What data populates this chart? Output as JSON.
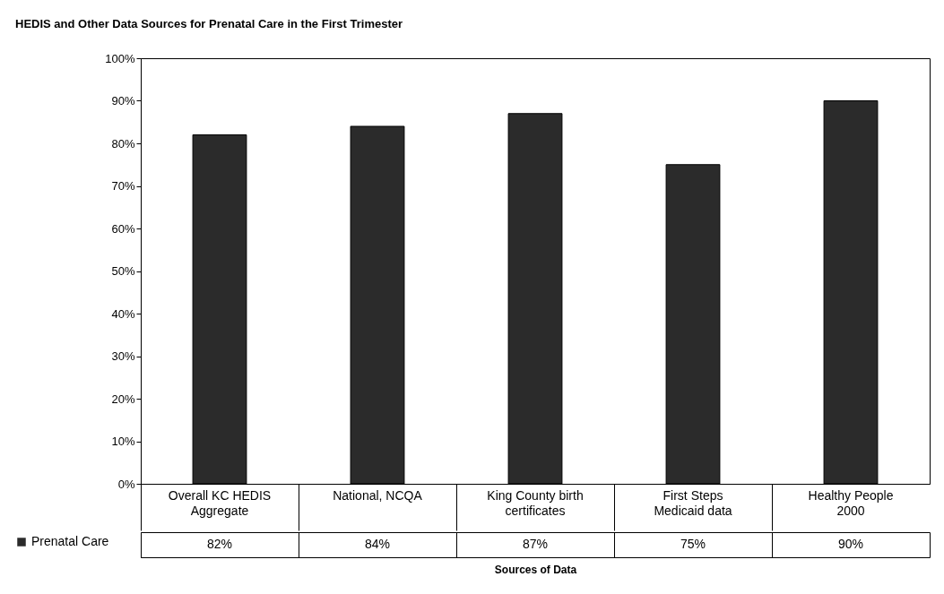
{
  "chart_data": {
    "type": "bar",
    "title": "HEDIS and Other Data Sources for Prenatal Care in the First Trimester",
    "xlabel": "Sources of Data",
    "categories": [
      "Overall KC HEDIS Aggregate",
      "National, NCQA",
      "King County birth certificates",
      "First Steps Medicaid data",
      "Healthy People 2000"
    ],
    "series": [
      {
        "name": "Prenatal Care",
        "color": "#2b2b2b",
        "values": [
          82,
          84,
          87,
          75,
          90
        ],
        "value_labels": [
          "82%",
          "84%",
          "87%",
          "75%",
          "90%"
        ]
      }
    ],
    "ylim": [
      0,
      100
    ],
    "yticks": [
      {
        "value": 0,
        "label": "0%"
      },
      {
        "value": 10,
        "label": "10%"
      },
      {
        "value": 20,
        "label": "20%"
      },
      {
        "value": 30,
        "label": "30%"
      },
      {
        "value": 40,
        "label": "40%"
      },
      {
        "value": 50,
        "label": "50%"
      },
      {
        "value": 60,
        "label": "60%"
      },
      {
        "value": 70,
        "label": "70%"
      },
      {
        "value": 80,
        "label": "80%"
      },
      {
        "value": 90,
        "label": "90%"
      },
      {
        "value": 100,
        "label": "100%"
      }
    ],
    "legend": "bottom left"
  }
}
